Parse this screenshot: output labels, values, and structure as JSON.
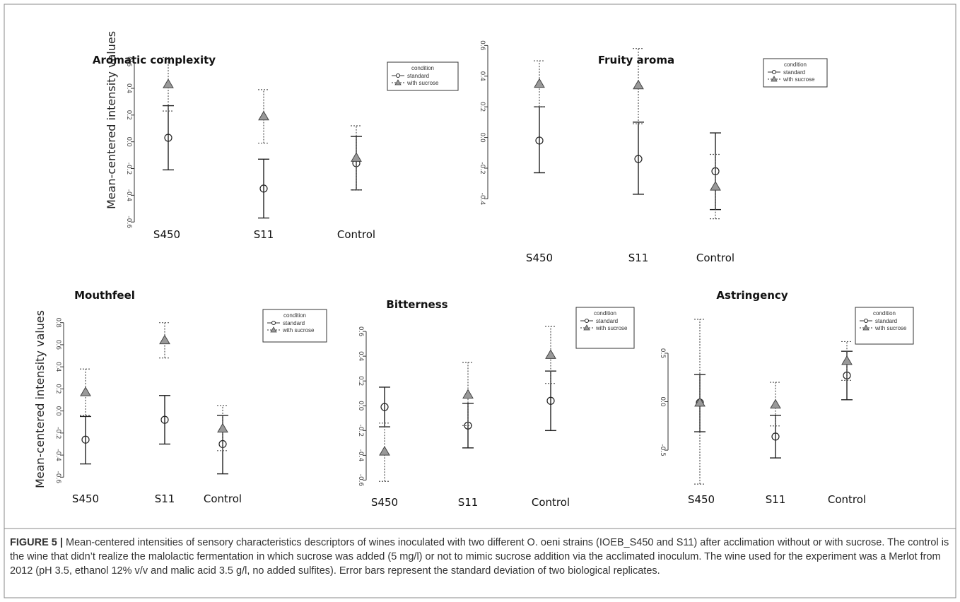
{
  "figure": {
    "caption_label": "FIGURE 5 |",
    "caption_text": "Mean-centered intensities of sensory characteristics descriptors of wines inoculated with two different O.  oeni strains (IOEB_S450 and S11) after acclimation without or with sucrose. The control is the wine that didn’t realize the malolactic fermentation in which sucrose was added (5 mg/l) or not to mimic sucrose addition via the acclimated inoculum. The wine used for the experiment was a Merlot from 2012 (pH 3.5, ethanol 12% v/v and malic acid 3.5 g/l, no added sulfites). Error bars represent the standard deviation of two biological replicates."
  },
  "colors": {
    "standard": "#222222",
    "with_sucrose": "#555555",
    "triangle_fill": "#999999"
  },
  "chart_data": [
    {
      "type": "scatter",
      "title": "Aromatic complexity",
      "ylabel": "Mean-centered intensity values",
      "xlabel": "",
      "categories": [
        "S450",
        "S11",
        "Control"
      ],
      "ylim": [
        -0.62,
        0.68
      ],
      "yticks": [
        -0.6,
        -0.4,
        -0.2,
        0.0,
        0.2,
        0.4,
        0.6
      ],
      "ytick_labels": [
        "-0.6",
        "-0.4",
        "-0.2",
        "0.0",
        "0.2",
        "0.4",
        "0.6"
      ],
      "legend": {
        "title": "condition",
        "entries": [
          "standard",
          "with sucrose"
        ],
        "position": "top-right"
      },
      "series": [
        {
          "name": "standard",
          "marker": "circle",
          "values": [
            0.03,
            -0.35,
            -0.16
          ],
          "err_low": [
            -0.21,
            -0.57,
            -0.36
          ],
          "err_high": [
            0.27,
            -0.13,
            0.04
          ]
        },
        {
          "name": "with sucrose",
          "marker": "triangle",
          "values": [
            0.43,
            0.19,
            -0.12
          ],
          "err_low": [
            0.23,
            -0.01,
            -0.36
          ],
          "err_high": [
            0.63,
            0.39,
            0.12
          ]
        }
      ]
    },
    {
      "type": "scatter",
      "title": "Fruity aroma",
      "ylabel": "",
      "xlabel": "",
      "categories": [
        "S450",
        "S11",
        "Control"
      ],
      "ylim": [
        -0.55,
        0.62
      ],
      "yticks": [
        -0.4,
        -0.2,
        0.0,
        0.2,
        0.4,
        0.6
      ],
      "ytick_labels": [
        "-0.4",
        "-0.2",
        "0.0",
        "0.2",
        "0.4",
        "0.6"
      ],
      "legend": {
        "title": "condition",
        "entries": [
          "standard",
          "with sucrose"
        ],
        "position": "top-right"
      },
      "series": [
        {
          "name": "standard",
          "marker": "circle",
          "values": [
            -0.02,
            -0.14,
            -0.22
          ],
          "err_low": [
            -0.23,
            -0.37,
            -0.47
          ],
          "err_high": [
            0.2,
            0.1,
            0.03
          ]
        },
        {
          "name": "with sucrose",
          "marker": "triangle",
          "values": [
            0.35,
            0.34,
            -0.32
          ],
          "err_low": [
            0.2,
            0.09,
            -0.53
          ],
          "err_high": [
            0.5,
            0.58,
            -0.11
          ]
        }
      ]
    },
    {
      "type": "scatter",
      "title": "Mouthfeel",
      "ylabel": "Mean-centered intensity values",
      "xlabel": "",
      "categories": [
        "S450",
        "S11",
        "Control"
      ],
      "ylim": [
        -0.63,
        0.83
      ],
      "yticks": [
        -0.6,
        -0.4,
        -0.2,
        0.0,
        0.2,
        0.4,
        0.6,
        0.8
      ],
      "ytick_labels": [
        "-0.6",
        "-0.4",
        "-0.2",
        "0.0",
        "0.2",
        "0.4",
        "0.6",
        "0.8"
      ],
      "legend": {
        "title": "condition",
        "entries": [
          "standard",
          "with sucrose"
        ],
        "position": "top-right"
      },
      "series": [
        {
          "name": "standard",
          "marker": "circle",
          "values": [
            -0.26,
            -0.08,
            -0.3
          ],
          "err_low": [
            -0.48,
            -0.3,
            -0.57
          ],
          "err_high": [
            -0.05,
            0.14,
            -0.04
          ]
        },
        {
          "name": "with sucrose",
          "marker": "triangle",
          "values": [
            0.17,
            0.64,
            -0.16
          ],
          "err_low": [
            -0.04,
            0.48,
            -0.36
          ],
          "err_high": [
            0.38,
            0.8,
            0.05
          ]
        }
      ]
    },
    {
      "type": "scatter",
      "title": "Bitterness",
      "ylabel": "",
      "xlabel": "",
      "categories": [
        "S450",
        "S11",
        "Control"
      ],
      "ylim": [
        -0.66,
        0.68
      ],
      "yticks": [
        -0.6,
        -0.4,
        -0.2,
        0.0,
        0.2,
        0.4,
        0.6
      ],
      "ytick_labels": [
        "-0.6",
        "-0.4",
        "-0.2",
        "0.0",
        "0.2",
        "0.4",
        "0.6"
      ],
      "legend": {
        "title": "condition",
        "entries": [
          "standard",
          "with sucrose"
        ],
        "position": "top-right"
      },
      "series": [
        {
          "name": "standard",
          "marker": "circle",
          "values": [
            -0.01,
            -0.16,
            0.04
          ],
          "err_low": [
            -0.17,
            -0.34,
            -0.2
          ],
          "err_high": [
            0.15,
            0.02,
            0.28
          ]
        },
        {
          "name": "with sucrose",
          "marker": "triangle",
          "values": [
            -0.37,
            0.09,
            0.41
          ],
          "err_low": [
            -0.61,
            -0.16,
            0.18
          ],
          "err_high": [
            -0.14,
            0.35,
            0.64
          ]
        }
      ]
    },
    {
      "type": "scatter",
      "title": "Astringency",
      "ylabel": "",
      "xlabel": "",
      "categories": [
        "S450",
        "S11",
        "Control"
      ],
      "ylim": [
        -0.9,
        0.9
      ],
      "yticks": [
        -0.5,
        0.0,
        0.5
      ],
      "ytick_labels": [
        "-0.5",
        "0.0",
        "0.5"
      ],
      "legend": {
        "title": "condition",
        "entries": [
          "standard",
          "with sucrose"
        ],
        "position": "top-right"
      },
      "series": [
        {
          "name": "standard",
          "marker": "circle",
          "values": [
            -0.01,
            -0.36,
            0.27
          ],
          "err_low": [
            -0.31,
            -0.58,
            0.02
          ],
          "err_high": [
            0.28,
            -0.14,
            0.52
          ]
        },
        {
          "name": "with sucrose",
          "marker": "triangle",
          "values": [
            -0.01,
            -0.03,
            0.42
          ],
          "err_low": [
            -0.85,
            -0.25,
            0.22
          ],
          "err_high": [
            0.85,
            0.2,
            0.62
          ]
        }
      ]
    }
  ]
}
